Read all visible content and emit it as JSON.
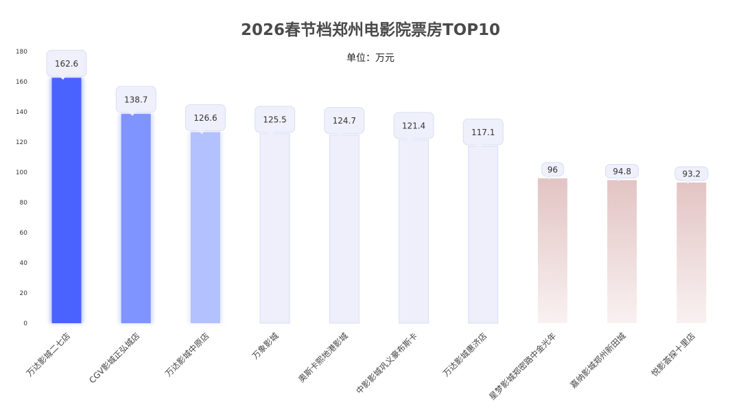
{
  "chart_data": {
    "type": "bar",
    "title": "2026春节档郑州电影院票房TOP10",
    "subtitle": "单位：万元",
    "categories": [
      "万达影城二七店",
      "CGV影城正弘城店",
      "万达影城中原店",
      "万象影城",
      "奥斯卡熙地港影城",
      "中影影城巩义豪布斯卡",
      "万达影城惠济店",
      "星梦影城郑密路中金光年",
      "嘉纳影城郑州新田城",
      "悦影荟探十里店"
    ],
    "values": [
      162.6,
      138.7,
      126.6,
      125.5,
      124.7,
      121.4,
      117.1,
      96,
      94.8,
      93.2
    ],
    "ylim": [
      0,
      180
    ],
    "yticks": [
      0,
      20,
      40,
      60,
      80,
      100,
      120,
      140,
      160,
      180
    ],
    "grid": false,
    "legend": "none",
    "colors": {
      "bar_1": "#4a63ff",
      "bar_2": "#7f94ff",
      "bar_3": "#b3c1ff",
      "bar_mid": "#eeeffb",
      "bar_low_top": "#e3c4c4",
      "bar_low_bottom": "#f9f1f1",
      "label_bg": "#eef0fb",
      "label_border": "#d9ddf3"
    }
  }
}
